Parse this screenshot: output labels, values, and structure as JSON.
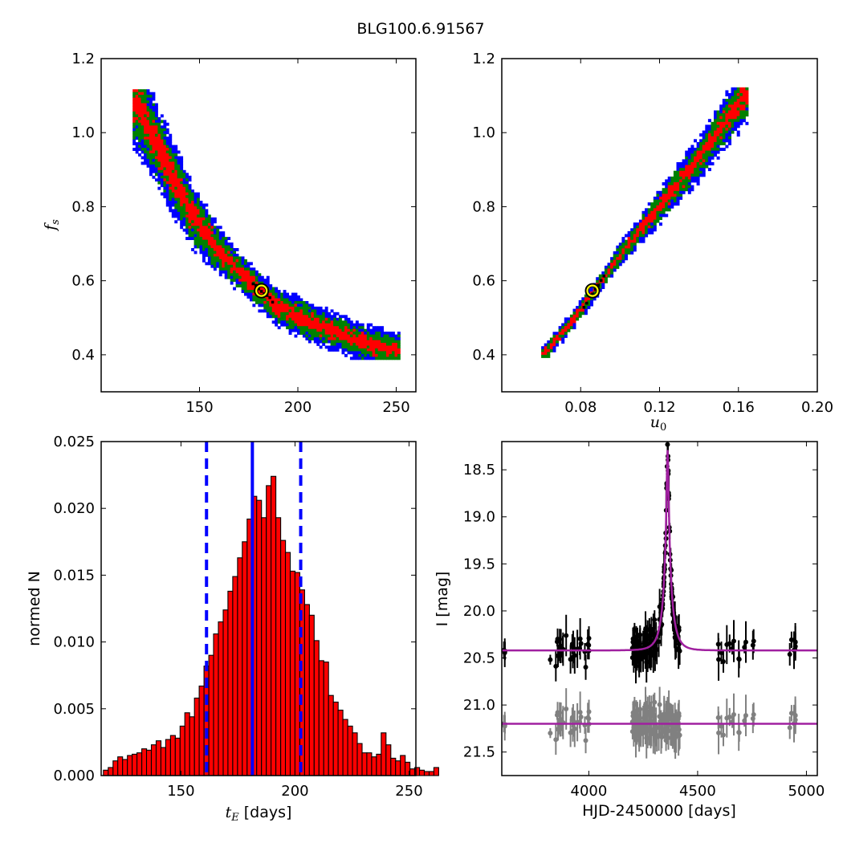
{
  "title": "BLG100.6.91567",
  "chart_data": [
    {
      "type": "heatmap",
      "panel": "tE-fs",
      "xlabel": "",
      "ylabel": "f_s",
      "xlim": [
        100,
        260
      ],
      "ylim": [
        0.3,
        1.2
      ],
      "xticks": [
        150,
        200,
        250
      ],
      "yticks": [
        0.4,
        0.6,
        0.8,
        1.0,
        1.2
      ],
      "levels": [
        "blue",
        "green",
        "red",
        "black"
      ],
      "colors": {
        "blue": "#0000ff",
        "green": "#008000",
        "red": "#ff0000",
        "black": "#000000",
        "marker": "#ffff00"
      },
      "band_center": [
        [
          118,
          1.08
        ],
        [
          130,
          0.95
        ],
        [
          145,
          0.79
        ],
        [
          160,
          0.68
        ],
        [
          175,
          0.6
        ],
        [
          190,
          0.53
        ],
        [
          205,
          0.49
        ],
        [
          220,
          0.46
        ],
        [
          235,
          0.43
        ],
        [
          250,
          0.41
        ]
      ],
      "best_fit": [
        181.5,
        0.573
      ]
    },
    {
      "type": "heatmap",
      "panel": "u0-fs",
      "xlabel": "u_0",
      "ylabel": "",
      "xlim": [
        0.04,
        0.2
      ],
      "ylim": [
        0.3,
        1.2
      ],
      "xticks": [
        0.08,
        0.12,
        0.16,
        0.2
      ],
      "yticks": [
        0.4,
        0.6,
        0.8,
        1.0,
        1.2
      ],
      "band_center": [
        [
          0.061,
          0.4
        ],
        [
          0.08,
          0.52
        ],
        [
          0.1,
          0.67
        ],
        [
          0.12,
          0.8
        ],
        [
          0.14,
          0.93
        ],
        [
          0.163,
          1.1
        ]
      ],
      "best_fit": [
        0.086,
        0.573
      ]
    },
    {
      "type": "bar",
      "panel": "tE-histogram",
      "xlabel": "t_E [days]",
      "ylabel": "normed N",
      "xlim": [
        115,
        253
      ],
      "ylim": [
        0,
        0.025
      ],
      "xticks": [
        150,
        200,
        250
      ],
      "yticks": [
        "0.000",
        "0.005",
        "0.010",
        "0.015",
        "0.020",
        "0.025"
      ],
      "bin_start": 116,
      "bin_width": 2.1,
      "values": [
        0.0004,
        0.0006,
        0.0011,
        0.0014,
        0.0012,
        0.0015,
        0.0016,
        0.0017,
        0.002,
        0.0019,
        0.0023,
        0.0026,
        0.0021,
        0.0027,
        0.003,
        0.0028,
        0.0037,
        0.0047,
        0.0044,
        0.0058,
        0.0067,
        0.0082,
        0.009,
        0.0106,
        0.0115,
        0.0124,
        0.0138,
        0.0149,
        0.0163,
        0.0175,
        0.0192,
        0.0209,
        0.0206,
        0.0193,
        0.0217,
        0.0224,
        0.0193,
        0.0176,
        0.0167,
        0.0153,
        0.0152,
        0.0139,
        0.0128,
        0.012,
        0.0101,
        0.0086,
        0.0085,
        0.006,
        0.0055,
        0.0049,
        0.0042,
        0.0037,
        0.0032,
        0.0024,
        0.0017,
        0.0017,
        0.0014,
        0.0016,
        0.0032,
        0.0023,
        0.0013,
        0.0011,
        0.0015,
        0.001,
        0.0005,
        0.0006,
        0.0004,
        0.0003,
        0.0003,
        0.0006
      ],
      "lines": {
        "median": 181.3,
        "lower": 161.2,
        "upper": 202.5
      },
      "bar_color": "#ff0000",
      "line_color": "#0000ff"
    },
    {
      "type": "scatter",
      "panel": "light-curve",
      "xlabel": "HJD-2450000 [days]",
      "ylabel": "I [mag]",
      "xlim": [
        3600,
        5050
      ],
      "ylim": [
        21.75,
        18.2
      ],
      "xticks": [
        4000,
        4500,
        5000
      ],
      "yticks": [
        18.5,
        19.0,
        19.5,
        20.0,
        20.5,
        21.0,
        21.5
      ],
      "model": {
        "t0": 4362,
        "tE": 181.3,
        "u0": 0.086,
        "fs": 0.573,
        "I_base": 20.42
      },
      "residual_offset": 21.2,
      "series": [
        {
          "name": "",
          "role": "data",
          "color": "#000000"
        },
        {
          "name": "",
          "role": "residuals",
          "color": "#808080"
        },
        {
          "name": "",
          "role": "model",
          "color": "#a020a0"
        }
      ]
    }
  ]
}
